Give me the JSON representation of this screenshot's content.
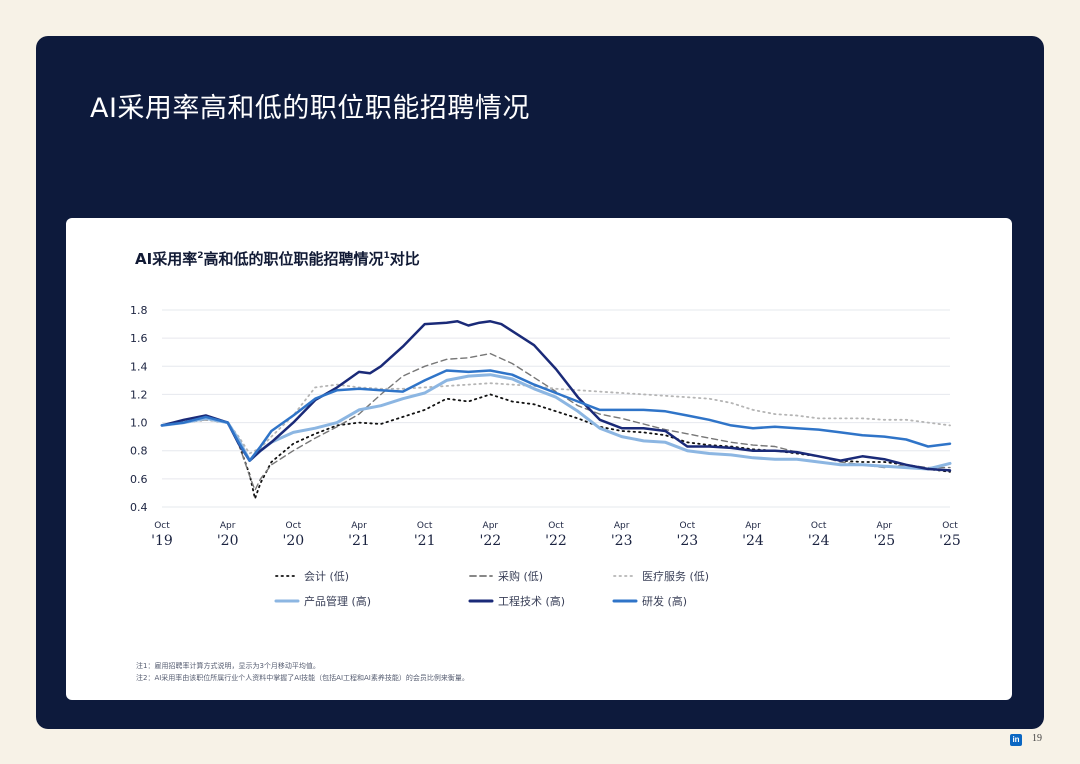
{
  "page": {
    "title": "AI采用率高和低的职位职能招聘情况",
    "page_number": "19",
    "logo_text": "in"
  },
  "chart": {
    "title_part1": "AI采用率",
    "title_sup1": "2",
    "title_part2": "高和低的职位职能招聘情况",
    "title_sup2": "1",
    "title_part3": "对比"
  },
  "notes": [
    "注1：雇用招聘率计算方式说明，显示为3个月移动平均值。",
    "注2：AI采用率由该职位所属行业个人资料中掌握了AI技能（包括AI工程和AI素养技能）的会员比例来衡量。"
  ],
  "colors": {
    "panel": "#0d1a3c",
    "navy": "#1a2a78",
    "blue": "#2f74c8",
    "light_blue": "#8cb6e2",
    "gray": "#777777",
    "dot_gray": "#b5b5b5",
    "black": "#111111"
  },
  "chart_data": {
    "type": "line",
    "title": "AI采用率²高和低的职位职能招聘情况¹对比",
    "xlabel": "",
    "ylabel": "",
    "ylim": [
      0.4,
      1.8
    ],
    "yticks": [
      "0.4",
      "0.6",
      "0.8",
      "1.0",
      "1.2",
      "1.4",
      "1.6",
      "1.8"
    ],
    "x_range": [
      0,
      72
    ],
    "xticks": [
      {
        "x": 0,
        "month": "Oct",
        "year": "'19"
      },
      {
        "x": 6,
        "month": "Apr",
        "year": "'20"
      },
      {
        "x": 12,
        "month": "Oct",
        "year": "'20"
      },
      {
        "x": 18,
        "month": "Apr",
        "year": "'21"
      },
      {
        "x": 24,
        "month": "Oct",
        "year": "'21"
      },
      {
        "x": 30,
        "month": "Apr",
        "year": "'22"
      },
      {
        "x": 36,
        "month": "Oct",
        "year": "'22"
      },
      {
        "x": 42,
        "month": "Apr",
        "year": "'23"
      },
      {
        "x": 48,
        "month": "Oct",
        "year": "'23"
      },
      {
        "x": 54,
        "month": "Apr",
        "year": "'24"
      },
      {
        "x": 60,
        "month": "Oct",
        "year": "'24"
      },
      {
        "x": 66,
        "month": "Apr",
        "year": "'25"
      },
      {
        "x": 72,
        "month": "Oct",
        "year": "'25"
      }
    ],
    "series": [
      {
        "name": "会计 (低)",
        "style": "dotted-black",
        "color": "#111111",
        "width": 1.8,
        "dash": "1.5,4",
        "x": [
          0,
          2,
          4,
          6,
          7,
          8,
          8.5,
          9,
          10,
          12,
          14,
          16,
          18,
          20,
          22,
          24,
          26,
          28,
          30,
          32,
          34,
          36,
          38,
          40,
          42,
          44,
          46,
          48,
          50,
          52,
          54,
          56,
          58,
          60,
          62,
          64,
          66,
          68,
          70,
          72
        ],
        "y": [
          0.98,
          1.0,
          1.02,
          1.0,
          0.85,
          0.63,
          0.46,
          0.57,
          0.72,
          0.85,
          0.92,
          0.98,
          1.0,
          0.99,
          1.04,
          1.09,
          1.17,
          1.15,
          1.2,
          1.15,
          1.13,
          1.08,
          1.03,
          0.97,
          0.94,
          0.93,
          0.91,
          0.86,
          0.84,
          0.83,
          0.81,
          0.8,
          0.78,
          0.76,
          0.73,
          0.72,
          0.72,
          0.7,
          0.67,
          0.65
        ]
      },
      {
        "name": "采购 (低)",
        "style": "dashed-gray",
        "color": "#777777",
        "width": 1.4,
        "dash": "6,4",
        "x": [
          0,
          2,
          4,
          6,
          7,
          8,
          8.5,
          9,
          10,
          12,
          14,
          16,
          18,
          20,
          22,
          24,
          26,
          28,
          30,
          32,
          34,
          36,
          38,
          40,
          42,
          44,
          46,
          48,
          50,
          52,
          54,
          56,
          58,
          60,
          62,
          64,
          66,
          68,
          70,
          72
        ],
        "y": [
          0.98,
          1.0,
          1.02,
          1.0,
          0.85,
          0.62,
          0.52,
          0.6,
          0.7,
          0.8,
          0.89,
          0.97,
          1.06,
          1.2,
          1.33,
          1.4,
          1.45,
          1.46,
          1.49,
          1.42,
          1.32,
          1.22,
          1.12,
          1.06,
          1.03,
          0.99,
          0.95,
          0.92,
          0.89,
          0.86,
          0.84,
          0.83,
          0.79,
          0.76,
          0.72,
          0.7,
          0.68,
          0.7,
          0.68,
          0.68
        ]
      },
      {
        "name": "医疗服务 (低)",
        "style": "dotted-lightgray",
        "color": "#b5b5b5",
        "width": 1.8,
        "dash": "1.5,4",
        "x": [
          0,
          2,
          4,
          6,
          7,
          8,
          9,
          10,
          12,
          14,
          16,
          18,
          20,
          22,
          24,
          26,
          28,
          30,
          32,
          34,
          36,
          38,
          40,
          42,
          44,
          46,
          48,
          50,
          52,
          54,
          56,
          58,
          60,
          62,
          64,
          66,
          68,
          70,
          72
        ],
        "y": [
          0.98,
          1.0,
          1.02,
          1.0,
          0.9,
          0.78,
          0.82,
          0.9,
          1.05,
          1.25,
          1.27,
          1.25,
          1.24,
          1.24,
          1.25,
          1.26,
          1.27,
          1.28,
          1.27,
          1.26,
          1.24,
          1.23,
          1.22,
          1.21,
          1.2,
          1.19,
          1.18,
          1.17,
          1.14,
          1.09,
          1.06,
          1.05,
          1.03,
          1.03,
          1.03,
          1.02,
          1.02,
          1.0,
          0.98
        ]
      },
      {
        "name": "产品管理 (高)",
        "style": "solid-lightblue",
        "color": "#8cb6e2",
        "width": 3,
        "x": [
          0,
          2,
          4,
          6,
          7,
          8,
          9,
          10,
          12,
          14,
          16,
          18,
          20,
          22,
          24,
          26,
          28,
          30,
          32,
          34,
          36,
          38,
          40,
          42,
          44,
          46,
          48,
          50,
          52,
          54,
          56,
          58,
          60,
          62,
          64,
          66,
          68,
          70,
          72
        ],
        "y": [
          0.98,
          1.0,
          1.03,
          1.0,
          0.88,
          0.73,
          0.8,
          0.86,
          0.93,
          0.96,
          1.0,
          1.09,
          1.12,
          1.17,
          1.21,
          1.3,
          1.33,
          1.34,
          1.31,
          1.24,
          1.18,
          1.08,
          0.96,
          0.9,
          0.87,
          0.86,
          0.8,
          0.78,
          0.77,
          0.75,
          0.74,
          0.74,
          0.72,
          0.7,
          0.7,
          0.69,
          0.68,
          0.67,
          0.71
        ]
      },
      {
        "name": "工程技术 (高)",
        "style": "solid-navy",
        "color": "#1a2a78",
        "width": 2.5,
        "x": [
          0,
          2,
          4,
          6,
          7,
          8,
          9,
          10,
          12,
          14,
          16,
          18,
          19,
          20,
          22,
          24,
          26,
          27,
          28,
          29,
          30,
          31,
          32,
          34,
          36,
          38,
          40,
          42,
          44,
          46,
          48,
          50,
          52,
          54,
          56,
          58,
          60,
          62,
          64,
          66,
          68,
          70,
          72
        ],
        "y": [
          0.98,
          1.02,
          1.05,
          1.0,
          0.85,
          0.73,
          0.8,
          0.86,
          1.0,
          1.16,
          1.25,
          1.36,
          1.35,
          1.4,
          1.54,
          1.7,
          1.71,
          1.72,
          1.69,
          1.71,
          1.72,
          1.7,
          1.65,
          1.55,
          1.38,
          1.18,
          1.02,
          0.96,
          0.96,
          0.94,
          0.83,
          0.83,
          0.82,
          0.8,
          0.8,
          0.79,
          0.76,
          0.73,
          0.76,
          0.74,
          0.7,
          0.67,
          0.66
        ]
      },
      {
        "name": "研发 (高)",
        "style": "solid-blue",
        "color": "#2f74c8",
        "width": 2.5,
        "x": [
          0,
          2,
          4,
          6,
          7,
          8,
          9,
          10,
          12,
          14,
          16,
          18,
          20,
          22,
          24,
          26,
          28,
          30,
          32,
          34,
          36,
          38,
          40,
          42,
          44,
          46,
          48,
          50,
          52,
          54,
          56,
          58,
          60,
          62,
          64,
          66,
          68,
          70,
          72
        ],
        "y": [
          0.98,
          1.0,
          1.04,
          1.0,
          0.86,
          0.73,
          0.83,
          0.94,
          1.05,
          1.17,
          1.23,
          1.24,
          1.23,
          1.22,
          1.3,
          1.37,
          1.36,
          1.37,
          1.34,
          1.27,
          1.21,
          1.15,
          1.09,
          1.09,
          1.09,
          1.08,
          1.05,
          1.02,
          0.98,
          0.96,
          0.97,
          0.96,
          0.95,
          0.93,
          0.91,
          0.9,
          0.88,
          0.83,
          0.85
        ]
      }
    ],
    "legend": [
      {
        "label": "会计 (低)",
        "style": "dotted-black"
      },
      {
        "label": "采购 (低)",
        "style": "dashed-gray"
      },
      {
        "label": "医疗服务 (低)",
        "style": "dotted-lightgray"
      },
      {
        "label": "产品管理 (高)",
        "style": "solid-lightblue"
      },
      {
        "label": "工程技术 (高)",
        "style": "solid-navy"
      },
      {
        "label": "研发 (高)",
        "style": "solid-blue"
      }
    ]
  }
}
